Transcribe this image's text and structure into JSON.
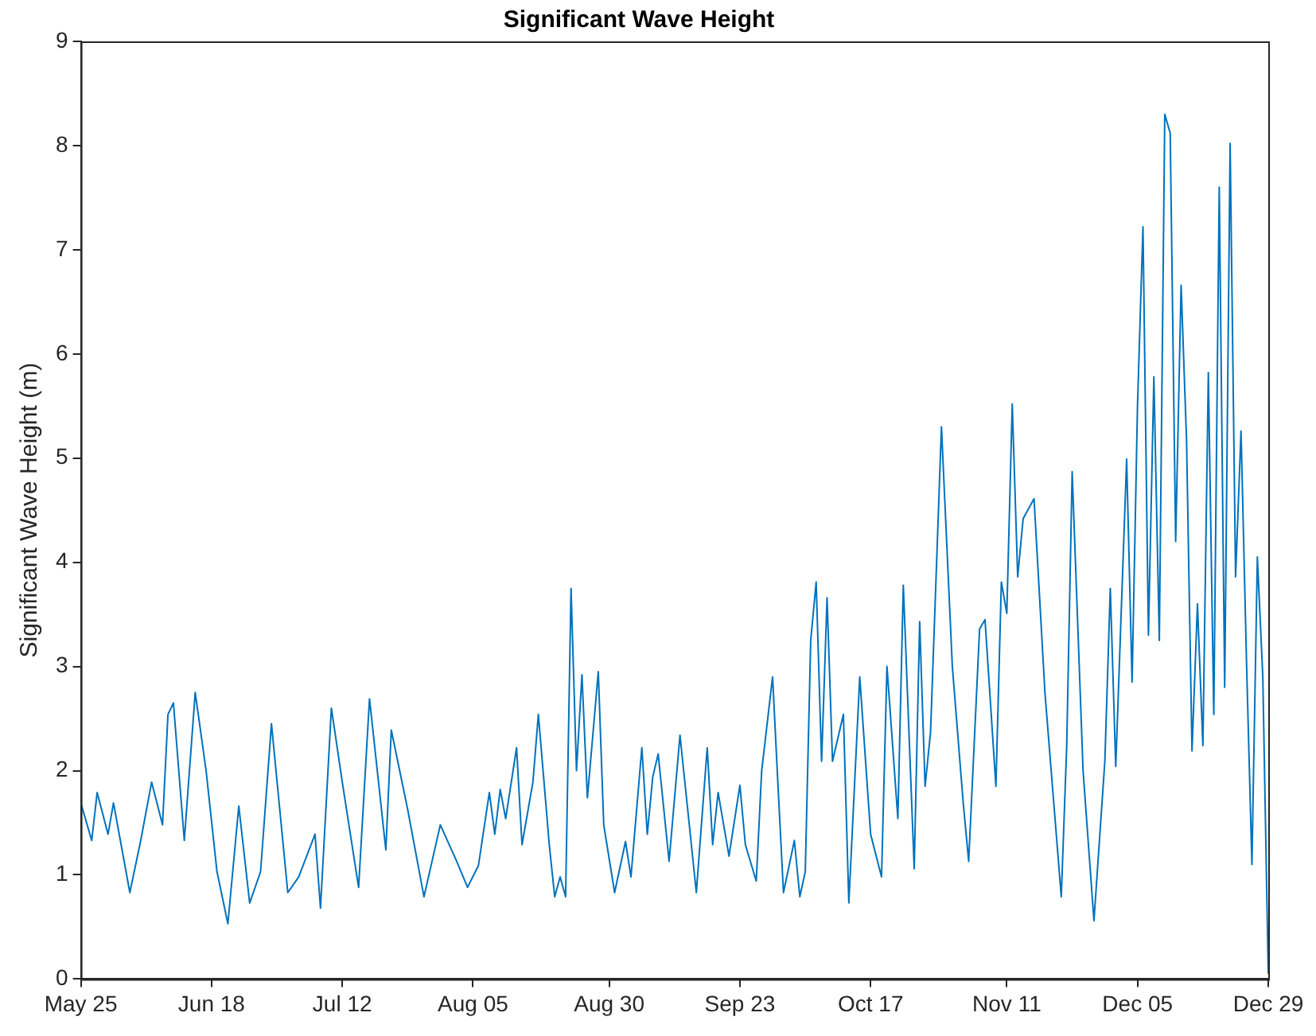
{
  "chart_data": {
    "type": "line",
    "title": "Significant Wave Height",
    "ylabel": "Significant Wave Height (m)",
    "x": [
      "--05-25",
      "--05-27",
      "--05-28",
      "--05-30",
      "--05-31",
      "--06-03",
      "--06-05",
      "--06-07",
      "--06-09",
      "--06-10",
      "--06-11",
      "--06-13",
      "--06-15",
      "--06-17",
      "--06-19",
      "--06-21",
      "--06-23",
      "--06-25",
      "--06-27",
      "--06-29",
      "--07-02",
      "--07-04",
      "--07-07",
      "--07-08",
      "--07-10",
      "--07-12",
      "--07-15",
      "--07-17",
      "--07-20",
      "--07-21",
      "--07-24",
      "--07-27",
      "--07-30",
      "--08-02",
      "--08-04",
      "--08-06",
      "--08-08",
      "--08-09",
      "--08-10",
      "--08-11",
      "--08-13",
      "--08-14",
      "--08-16",
      "--08-17",
      "--08-19",
      "--08-20",
      "--08-21",
      "--08-22",
      "--08-23",
      "--08-24",
      "--08-25",
      "--08-26",
      "--08-27",
      "--08-28",
      "--08-29",
      "--08-31",
      "--09-02",
      "--09-03",
      "--09-05",
      "--09-06",
      "--09-07",
      "--09-08",
      "--09-10",
      "--09-12",
      "--09-15",
      "--09-17",
      "--09-18",
      "--09-19",
      "--09-21",
      "--09-23",
      "--09-24",
      "--09-26",
      "--09-27",
      "--09-29",
      "--09-30",
      "--10-01",
      "--10-03",
      "--10-04",
      "--10-05",
      "--10-06",
      "--10-07",
      "--10-08",
      "--10-09",
      "--10-10",
      "--10-12",
      "--10-13",
      "--10-15",
      "--10-17",
      "--10-19",
      "--10-20",
      "--10-22",
      "--10-23",
      "--10-25",
      "--10-26",
      "--10-27",
      "--10-28",
      "--10-30",
      "--11-01",
      "--11-03",
      "--11-04",
      "--11-06",
      "--11-07",
      "--11-09",
      "--11-10",
      "--11-11",
      "--11-12",
      "--11-13",
      "--11-14",
      "--11-16",
      "--11-18",
      "--11-21",
      "--11-22",
      "--11-23",
      "--11-25",
      "--11-27",
      "--11-29",
      "--11-30",
      "--12-01",
      "--12-03",
      "--12-04",
      "--12-05",
      "--12-06",
      "--12-07",
      "--12-08",
      "--12-09",
      "--12-10",
      "--12-11",
      "--12-12",
      "--12-13",
      "--12-14",
      "--12-15",
      "--12-16",
      "--12-17",
      "--12-18",
      "--12-19",
      "--12-20",
      "--12-21",
      "--12-22",
      "--12-23",
      "--12-24",
      "--12-25",
      "--12-26",
      "--12-27",
      "--12-28",
      "--12-29"
    ],
    "series": [
      {
        "color": "#0072bd",
        "values": [
          1.69,
          1.33,
          1.79,
          1.39,
          1.69,
          0.83,
          1.33,
          1.89,
          1.48,
          2.54,
          2.65,
          1.33,
          2.75,
          2.0,
          1.03,
          0.53,
          1.66,
          0.73,
          1.03,
          2.45,
          0.83,
          0.98,
          1.39,
          0.68,
          2.6,
          1.89,
          0.88,
          2.69,
          1.24,
          2.39,
          1.63,
          0.79,
          1.48,
          1.13,
          0.88,
          1.09,
          1.79,
          1.39,
          1.82,
          1.54,
          2.22,
          1.29,
          1.89,
          2.54,
          1.29,
          0.79,
          0.98,
          0.79,
          3.75,
          2.0,
          2.92,
          1.74,
          2.34,
          2.95,
          1.48,
          0.83,
          1.32,
          0.98,
          2.22,
          1.39,
          1.94,
          2.16,
          1.13,
          2.34,
          0.83,
          2.22,
          1.29,
          1.79,
          1.18,
          1.86,
          1.29,
          0.94,
          2.0,
          2.9,
          1.85,
          0.83,
          1.33,
          0.79,
          1.03,
          3.25,
          3.81,
          2.09,
          3.66,
          2.09,
          2.54,
          0.73,
          2.9,
          1.39,
          0.98,
          3.0,
          1.54,
          3.78,
          1.06,
          3.43,
          1.85,
          2.37,
          5.3,
          3.0,
          1.69,
          1.13,
          3.36,
          3.45,
          1.85,
          3.81,
          3.51,
          5.52,
          3.86,
          4.42,
          4.61,
          2.75,
          0.79,
          2.24,
          4.87,
          2.0,
          0.56,
          2.09,
          3.75,
          2.04,
          4.99,
          2.85,
          5.52,
          7.22,
          3.3,
          5.78,
          3.25,
          8.3,
          8.12,
          4.2,
          6.66,
          5.17,
          2.19,
          3.6,
          2.24,
          5.82,
          2.54,
          7.6,
          2.8,
          8.02,
          3.86,
          5.26,
          3.06,
          1.1,
          4.05,
          2.9,
          0.05
        ]
      }
    ],
    "xlim": [
      "--05-25",
      "--12-29"
    ],
    "xticks": [
      {
        "value": "--05-25",
        "label": "May 25"
      },
      {
        "value": "--06-18",
        "label": "Jun 18"
      },
      {
        "value": "--07-12",
        "label": "Jul 12"
      },
      {
        "value": "--08-05",
        "label": "Aug 05"
      },
      {
        "value": "--08-30",
        "label": "Aug 30"
      },
      {
        "value": "--09-23",
        "label": "Sep 23"
      },
      {
        "value": "--10-17",
        "label": "Oct 17"
      },
      {
        "value": "--11-11",
        "label": "Nov 11"
      },
      {
        "value": "--12-05",
        "label": "Dec 05"
      },
      {
        "value": "--12-29",
        "label": "Dec 29"
      }
    ],
    "ylim": [
      0,
      9
    ],
    "yticks": [
      0,
      1,
      2,
      3,
      4,
      5,
      6,
      7,
      8,
      9
    ],
    "grid": false,
    "legend": false,
    "marker": "none",
    "line_style": "solid"
  }
}
